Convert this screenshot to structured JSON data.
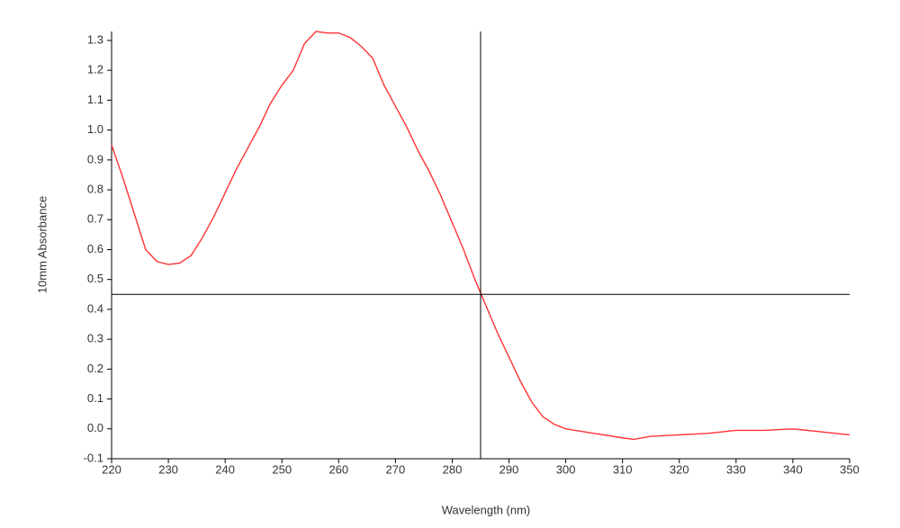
{
  "chart_data": {
    "type": "line",
    "x_label": "Wavelength (nm)",
    "y_label": "10mm Absorbance",
    "x": [
      220,
      222,
      224,
      226,
      228,
      230,
      232,
      234,
      236,
      238,
      240,
      242,
      244,
      246,
      248,
      250,
      252,
      254,
      256,
      258,
      260,
      262,
      264,
      266,
      268,
      270,
      272,
      274,
      276,
      278,
      280,
      282,
      284,
      286,
      288,
      290,
      292,
      294,
      296,
      298,
      300,
      305,
      310,
      312,
      315,
      320,
      325,
      330,
      335,
      340,
      345,
      350
    ],
    "values": [
      0.95,
      0.84,
      0.72,
      0.6,
      0.56,
      0.55,
      0.555,
      0.58,
      0.64,
      0.71,
      0.79,
      0.87,
      0.94,
      1.01,
      1.09,
      1.15,
      1.2,
      1.29,
      1.33,
      1.325,
      1.325,
      1.31,
      1.28,
      1.24,
      1.15,
      1.08,
      1.01,
      0.93,
      0.86,
      0.78,
      0.69,
      0.6,
      0.5,
      0.41,
      0.32,
      0.24,
      0.16,
      0.09,
      0.04,
      0.015,
      0.0,
      -0.015,
      -0.03,
      -0.035,
      -0.025,
      -0.02,
      -0.015,
      -0.005,
      -0.005,
      0.0,
      -0.01,
      -0.02
    ],
    "color": "#ff3333",
    "xlim": [
      220,
      350
    ],
    "ylim": [
      -0.1,
      1.33
    ],
    "xticks": [
      220,
      230,
      240,
      250,
      260,
      270,
      280,
      290,
      300,
      310,
      320,
      330,
      340,
      350
    ],
    "yticks": [
      -0.1,
      {
        "value": 0,
        "label": "0.0"
      },
      0.1,
      0.2,
      0.3,
      0.4,
      0.5,
      0.6,
      0.7,
      0.8,
      0.9,
      {
        "value": 1,
        "label": "1.0"
      },
      1.1,
      1.2,
      1.3
    ],
    "crosshair": {
      "x": 285,
      "y": 0.45
    }
  }
}
